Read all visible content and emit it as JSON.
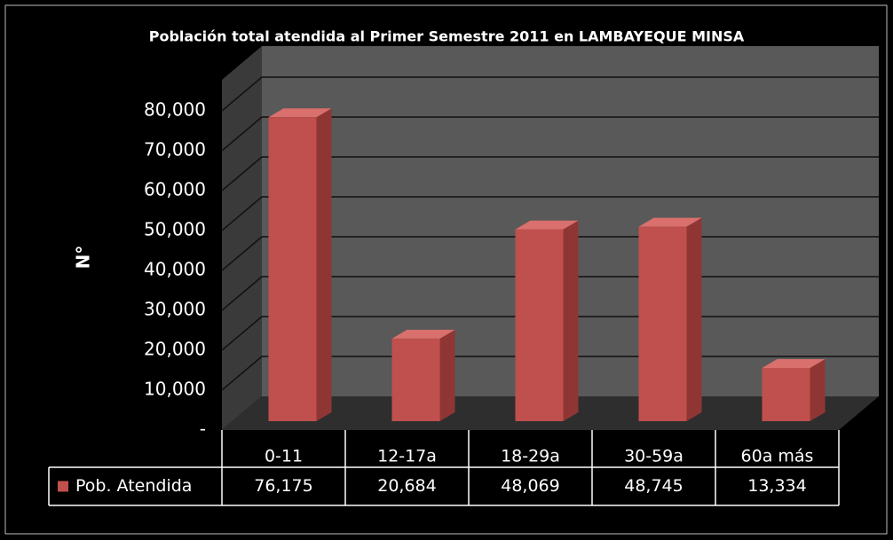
{
  "chart_data": {
    "type": "bar3d",
    "title": "Población total atendida al Primer Semestre 2011 en LAMBAYEQUE MINSA",
    "y_label": "N°",
    "categories": [
      "0-11",
      "12-17a",
      "18-29a",
      "30-59a",
      "60a más"
    ],
    "series": [
      {
        "name": "Pob. Atendida",
        "color": "#c0504d",
        "values": [
          76175,
          20684,
          48069,
          48745,
          13334
        ],
        "value_labels": [
          "76,175",
          "20,684",
          "48,069",
          "48,745",
          "13,334"
        ]
      }
    ],
    "ylim": [
      0,
      80000
    ],
    "yticks": [
      {
        "value": 0,
        "label": "-"
      },
      {
        "value": 10000,
        "label": "10,000"
      },
      {
        "value": 20000,
        "label": "20,000"
      },
      {
        "value": 30000,
        "label": "30,000"
      },
      {
        "value": 40000,
        "label": "40,000"
      },
      {
        "value": 50000,
        "label": "50,000"
      },
      {
        "value": 60000,
        "label": "60,000"
      },
      {
        "value": 70000,
        "label": "70,000"
      },
      {
        "value": 80000,
        "label": "80,000"
      }
    ],
    "grid": true
  }
}
